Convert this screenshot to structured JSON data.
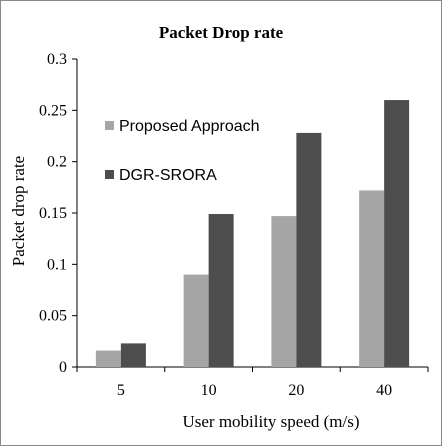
{
  "chart_data": {
    "type": "bar",
    "title": "Packet Drop rate",
    "xlabel": "User mobility speed (m/s)",
    "ylabel": "Packet drop rate",
    "categories": [
      "5",
      "10",
      "20",
      "40"
    ],
    "series": [
      {
        "name": "Proposed Approach",
        "color": "#a6a6a6",
        "values": [
          0.016,
          0.09,
          0.147,
          0.172
        ]
      },
      {
        "name": "DGR-SRORA",
        "color": "#4d4d4d",
        "values": [
          0.023,
          0.149,
          0.228,
          0.26
        ]
      }
    ],
    "ylim": [
      0,
      0.3
    ],
    "yticks": [
      "0",
      "0.05",
      "0.1",
      "0.15",
      "0.2",
      "0.25",
      "0.3"
    ],
    "grid": false,
    "legend_position": "top-left"
  }
}
